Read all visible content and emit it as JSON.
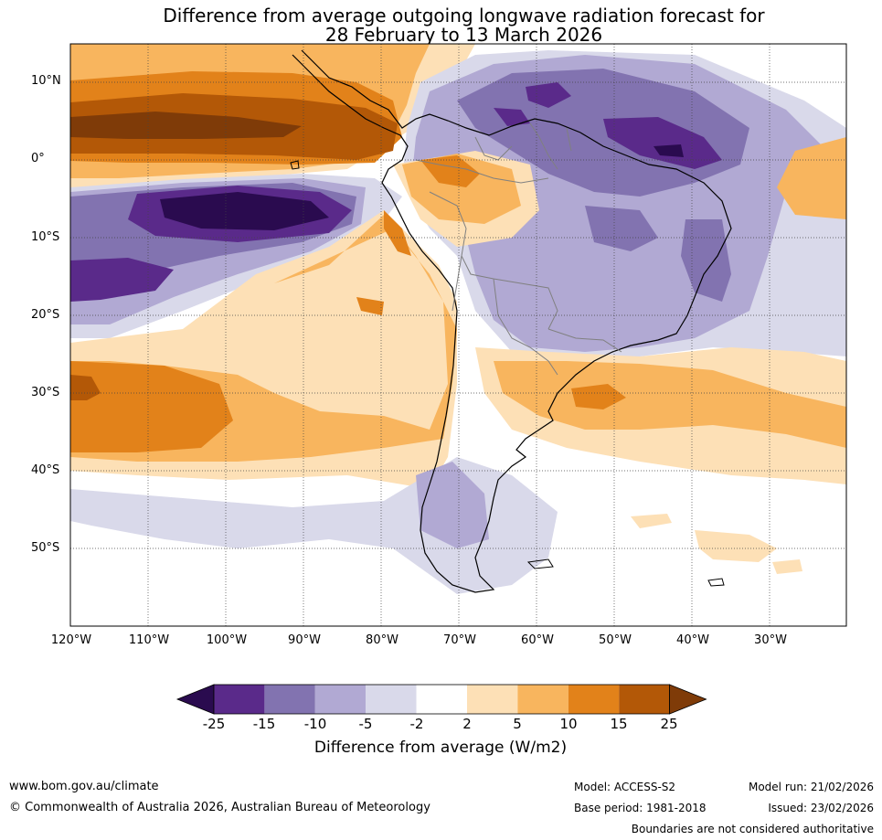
{
  "title": {
    "line1": "Difference from average outgoing longwave radiation forecast for",
    "line2": "28 February to 13 March 2026"
  },
  "map": {
    "lat_labels": [
      "10°N",
      "0°",
      "10°S",
      "20°S",
      "30°S",
      "40°S",
      "50°S"
    ],
    "lon_labels": [
      "120°W",
      "110°W",
      "100°W",
      "90°W",
      "80°W",
      "70°W",
      "60°W",
      "50°W",
      "40°W",
      "30°W"
    ],
    "colors": {
      "ocean_bg": "#ffffff",
      "coast": "#000000",
      "border": "#808080",
      "grid": "#444444"
    }
  },
  "colorbar": {
    "ticks": [
      "-25",
      "-15",
      "-10",
      "-5",
      "-2",
      "2",
      "5",
      "10",
      "15",
      "25"
    ],
    "colors": [
      "#2a0b4f",
      "#5a2a8a",
      "#8273b0",
      "#b1a9d3",
      "#d9d9ea",
      "#ffffff",
      "#fde0b6",
      "#f8b55e",
      "#e2821a",
      "#b35807",
      "#7f3b08"
    ],
    "label": "Difference from average (W/m2)"
  },
  "footer": {
    "url": "www.bom.gov.au/climate",
    "copyright": "© Commonwealth of Australia 2026, Australian Bureau of Meteorology",
    "model": "Model: ACCESS-S2",
    "base_period": "Base period: 1981-2018",
    "model_run": "Model run: 21/02/2026",
    "issued": "Issued: 23/02/2026",
    "disclaimer": "Boundaries are not considered authoritative"
  }
}
